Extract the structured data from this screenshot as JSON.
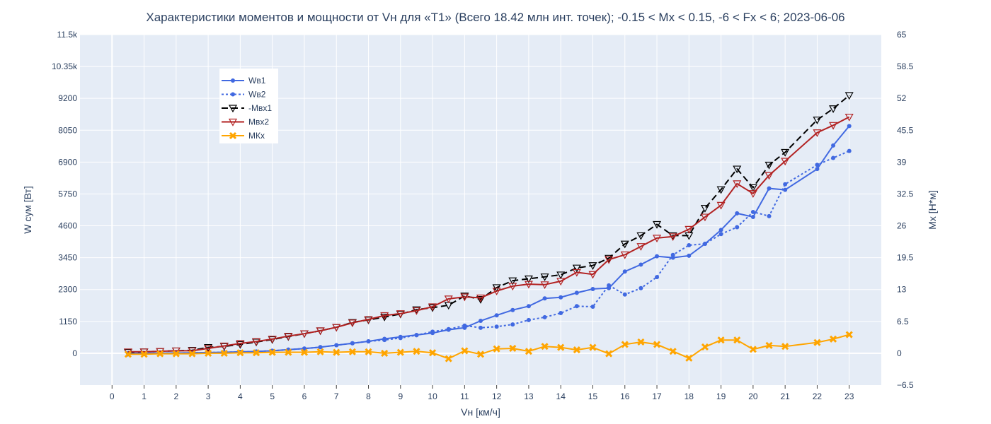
{
  "chart_data": {
    "type": "line",
    "title": "Характеристики моментов и мощности от Vн для «Т1» (Всего 18.42 млн инт. точек); -0.15 < Mx < 0.15, -6 < Fx < 6; 2023-06-06",
    "xlabel": "Vн [км/ч]",
    "ylabel_left": "W сум [Вт]",
    "ylabel_right": "Мх [Н*м]",
    "xlim": [
      -1,
      24
    ],
    "ylim_left": [
      -1150,
      11500
    ],
    "ylim_right": [
      -6.5,
      65
    ],
    "x_ticks": [
      0,
      1,
      2,
      3,
      4,
      5,
      6,
      7,
      8,
      9,
      10,
      11,
      12,
      13,
      14,
      15,
      16,
      17,
      18,
      19,
      20,
      21,
      22,
      23
    ],
    "y_left_ticks": [
      0,
      1150,
      2300,
      3450,
      4600,
      5750,
      6900,
      8050,
      9200,
      10350,
      11500
    ],
    "y_left_tick_labels": [
      "0",
      "1150",
      "2300",
      "3450",
      "4600",
      "5750",
      "6900",
      "8050",
      "9200",
      "10.35k",
      "11.5k"
    ],
    "y_right_ticks": [
      -6.5,
      0,
      6.5,
      13,
      19.5,
      26,
      32.5,
      39,
      45.5,
      52,
      58.5,
      65
    ],
    "y_right_tick_labels": [
      "−6.5",
      "0",
      "6.5",
      "13",
      "19.5",
      "26",
      "32.5",
      "39",
      "45.5",
      "52",
      "58.5",
      "65"
    ],
    "grid": true,
    "legend_position": "top-left",
    "series": [
      {
        "name": "Wв1",
        "axis": "left",
        "color": "#4169e1",
        "line": "solid",
        "marker": "circle",
        "x": [
          0.5,
          1,
          1.5,
          2,
          2.5,
          3,
          3.5,
          4,
          4.5,
          5,
          5.5,
          6,
          6.5,
          7,
          7.5,
          8,
          8.5,
          9,
          9.5,
          10,
          10.5,
          11,
          11.5,
          12,
          12.5,
          13,
          13.5,
          14,
          14.5,
          15,
          15.5,
          16,
          16.5,
          17,
          17.5,
          18,
          18.5,
          19,
          19.5,
          20,
          20.5,
          21,
          22,
          22.5,
          23
        ],
        "y": [
          0,
          0,
          5,
          10,
          15,
          25,
          35,
          50,
          65,
          90,
          130,
          170,
          220,
          290,
          360,
          430,
          520,
          590,
          660,
          730,
          850,
          920,
          1170,
          1370,
          1560,
          1700,
          1980,
          2020,
          2180,
          2320,
          2350,
          2950,
          3200,
          3500,
          3450,
          3520,
          3950,
          4450,
          5050,
          4920,
          5950,
          5900,
          6650,
          7500,
          8200
        ]
      },
      {
        "name": "Wв2",
        "axis": "left",
        "color": "#4169e1",
        "line": "dot",
        "marker": "circle",
        "x": [
          0.5,
          1,
          1.5,
          2,
          2.5,
          3,
          3.5,
          4,
          4.5,
          5,
          5.5,
          6,
          6.5,
          7,
          7.5,
          8,
          8.5,
          9,
          9.5,
          10,
          10.5,
          11,
          11.5,
          12,
          12.5,
          13,
          13.5,
          14,
          14.5,
          15,
          15.5,
          16,
          16.5,
          17,
          17.5,
          18,
          18.5,
          19,
          19.5,
          20,
          20.5,
          21,
          22,
          22.5,
          23
        ],
        "y": [
          0,
          0,
          5,
          10,
          15,
          25,
          35,
          50,
          65,
          90,
          130,
          170,
          220,
          290,
          360,
          430,
          480,
          550,
          650,
          780,
          870,
          1000,
          920,
          960,
          1040,
          1200,
          1300,
          1450,
          1700,
          1680,
          2450,
          2120,
          2350,
          2750,
          3550,
          3900,
          3950,
          4300,
          4550,
          5100,
          4950,
          6100,
          6800,
          7050,
          7300
        ]
      },
      {
        "name": "-Мвх1",
        "axis": "right",
        "color": "#000000",
        "line": "dash",
        "marker": "triangle-down-open",
        "x": [
          0.5,
          1,
          1.5,
          2,
          2.5,
          3,
          3.5,
          4,
          4.5,
          5,
          5.5,
          6,
          6.5,
          7,
          7.5,
          8,
          8.5,
          9,
          9.5,
          10,
          10.5,
          11,
          11.5,
          12,
          12.5,
          13,
          13.5,
          14,
          14.5,
          15,
          15.5,
          16,
          16.5,
          17,
          17.5,
          18,
          18.5,
          19,
          19.5,
          20,
          20.5,
          21,
          22,
          22.5,
          23
        ],
        "y": [
          0.2,
          0.3,
          0.4,
          0.5,
          0.6,
          1.2,
          1.4,
          1.8,
          2.3,
          2.8,
          3.4,
          4.0,
          4.6,
          5.3,
          6.3,
          6.8,
          7.4,
          8.0,
          8.9,
          9.3,
          9.8,
          11.7,
          11.0,
          13.4,
          14.8,
          15.2,
          15.6,
          16.0,
          17.4,
          17.9,
          19.4,
          22.3,
          24.0,
          26.3,
          24.0,
          24.0,
          29.6,
          33.4,
          37.6,
          33.8,
          38.4,
          41.0,
          47.6,
          49.9,
          52.6
        ]
      },
      {
        "name": "Мвх2",
        "axis": "right",
        "color": "#b22222",
        "line": "solid",
        "marker": "triangle-down-open",
        "x": [
          0.5,
          1,
          1.5,
          2,
          2.5,
          3,
          3.5,
          4,
          4.5,
          5,
          5.5,
          6,
          6.5,
          7,
          7.5,
          8,
          8.5,
          9,
          9.5,
          10,
          10.5,
          11,
          11.5,
          12,
          12.5,
          13,
          13.5,
          14,
          14.5,
          15,
          15.5,
          16,
          16.5,
          17,
          17.5,
          18,
          18.5,
          19,
          19.5,
          20,
          20.5,
          21,
          22,
          22.5,
          23
        ],
        "y": [
          0.3,
          0.3,
          0.4,
          0.5,
          0.5,
          1.0,
          1.5,
          2.0,
          2.4,
          2.9,
          3.5,
          4.0,
          4.6,
          5.3,
          6.2,
          6.9,
          7.7,
          8.1,
          8.7,
          9.5,
          11.1,
          11.5,
          11.3,
          12.7,
          13.7,
          14.1,
          14.0,
          14.7,
          16.5,
          16.1,
          19.1,
          20.1,
          21.8,
          23.5,
          23.8,
          25.3,
          27.8,
          30.2,
          34.6,
          32.6,
          36.3,
          39.2,
          45.0,
          46.5,
          48.2
        ]
      },
      {
        "name": "МКх",
        "axis": "right",
        "color": "#ffa500",
        "line": "solid",
        "marker": "x",
        "x": [
          0.5,
          1,
          1.5,
          2,
          2.5,
          3,
          3.5,
          4,
          4.5,
          5,
          5.5,
          6,
          6.5,
          7,
          7.5,
          8,
          8.5,
          9,
          9.5,
          10,
          10.5,
          11,
          11.5,
          12,
          12.5,
          13,
          13.5,
          14,
          14.5,
          15,
          15.5,
          16,
          16.5,
          17,
          17.5,
          18,
          18.5,
          19,
          19.5,
          20,
          20.5,
          21,
          22,
          22.5,
          23
        ],
        "y": [
          -0.2,
          -0.2,
          -0.1,
          -0.1,
          -0.1,
          0.0,
          0.0,
          0.1,
          0.1,
          0.2,
          0.2,
          0.2,
          0.3,
          0.2,
          0.3,
          0.3,
          0.0,
          0.2,
          0.4,
          0.1,
          -1.1,
          0.5,
          -0.2,
          0.9,
          1.0,
          0.4,
          1.4,
          1.2,
          0.7,
          1.2,
          -0.1,
          1.8,
          2.3,
          1.8,
          0.4,
          -1.0,
          1.3,
          2.7,
          2.7,
          0.8,
          1.6,
          1.4,
          2.2,
          2.9,
          3.8
        ]
      }
    ]
  }
}
